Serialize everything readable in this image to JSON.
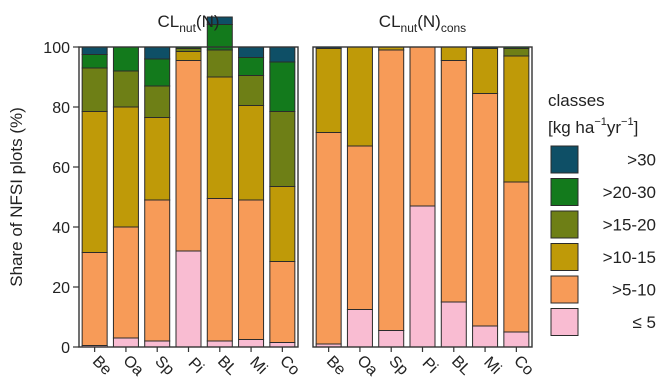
{
  "chart_data": {
    "type": "bar",
    "stacked": true,
    "ylabel": "Share of NFSI plots (%)",
    "ylim": [
      0,
      100
    ],
    "yticks": [
      0,
      20,
      40,
      60,
      80,
      100
    ],
    "categories": [
      "Be",
      "Oa",
      "Sp",
      "Pi",
      "BL",
      "Mi",
      "Co"
    ],
    "legend": {
      "title": [
        "classes",
        "[kg ha",
        "−1",
        "yr",
        "−1",
        "]"
      ],
      "position": "right",
      "entries": [
        {
          "label": ">30",
          "color": "#0e4f66"
        },
        {
          "label": ">20-30",
          "color": "#137a1c"
        },
        {
          "label": ">15-20",
          "color": "#6e7f16"
        },
        {
          "label": ">10-15",
          "color": "#bf9a08"
        },
        {
          "label": ">5-10",
          "color": "#f79b58"
        },
        {
          "label": "≤ 5",
          "color": "#f9bcd2"
        }
      ]
    },
    "panels": [
      {
        "title": [
          "CL",
          "nut",
          "(N)"
        ],
        "segment_order": [
          "≤ 5",
          ">5-10",
          ">10-15",
          ">15-20",
          ">20-30",
          ">30"
        ],
        "series": [
          {
            "name": "≤ 5",
            "values": [
              0.5,
              3,
              2,
              32,
              2,
              2.5,
              1.5
            ]
          },
          {
            "name": ">5-10",
            "values": [
              31,
              37,
              47,
              63.5,
              47.5,
              46.5,
              27
            ]
          },
          {
            "name": ">10-15",
            "values": [
              47,
              40,
              27.5,
              3,
              40.5,
              31.5,
              25
            ]
          },
          {
            "name": ">15-20",
            "values": [
              14.5,
              12,
              10.5,
              1,
              9,
              10,
              25
            ]
          },
          {
            "name": ">20-30",
            "values": [
              4.5,
              8,
              9,
              0.5,
              8.5,
              6,
              16.5
            ]
          },
          {
            "name": ">30",
            "values": [
              2.5,
              0,
              4,
              0,
              2.5,
              3.5,
              5
            ]
          }
        ]
      },
      {
        "title": [
          "CL",
          "nut",
          "(N)",
          "cons"
        ],
        "segment_order": [
          "≤ 5",
          ">5-10",
          ">10-15",
          ">15-20",
          ">20-30",
          ">30"
        ],
        "series": [
          {
            "name": "≤ 5",
            "values": [
              1,
              12.5,
              5.5,
              47,
              15,
              7,
              5
            ]
          },
          {
            "name": ">5-10",
            "values": [
              70.5,
              54.5,
              93.5,
              53,
              80.5,
              77.5,
              50
            ]
          },
          {
            "name": ">10-15",
            "values": [
              28,
              33,
              1,
              0,
              4.5,
              15,
              42
            ]
          },
          {
            "name": ">15-20",
            "values": [
              0,
              0,
              0,
              0,
              0,
              0,
              2.5
            ]
          },
          {
            "name": ">20-30",
            "values": [
              0,
              0,
              0,
              0,
              0,
              0,
              0.5
            ]
          },
          {
            "name": ">30",
            "values": [
              0.5,
              0,
              0,
              0,
              0,
              0.5,
              0
            ]
          }
        ]
      }
    ]
  }
}
